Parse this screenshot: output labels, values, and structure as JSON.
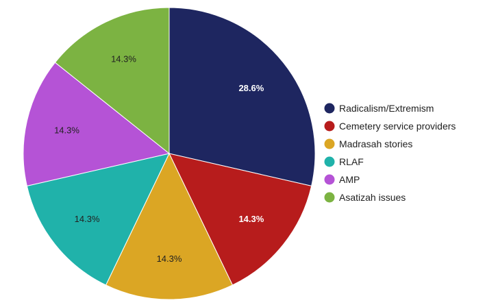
{
  "chart_data": {
    "type": "pie",
    "categories": [
      "Radicalism/Extremism",
      "Cemetery service providers",
      "Madrasah stories",
      "RLAF",
      "AMP",
      "Asatizah issues"
    ],
    "values": [
      28.6,
      14.3,
      14.3,
      14.3,
      14.3,
      14.3
    ],
    "labels": [
      "28.6%",
      "14.3%",
      "14.3%",
      "14.3%",
      "14.3%",
      "14.3%"
    ],
    "colors": [
      "#1e2660",
      "#b71c1c",
      "#dba624",
      "#20b2aa",
      "#b553d6",
      "#7cb342"
    ],
    "label_colors": [
      "#ffffff",
      "#ffffff",
      "#212121",
      "#212121",
      "#212121",
      "#212121"
    ],
    "legend_position": "right",
    "start_angle_deg": 0,
    "direction": "clockwise"
  }
}
